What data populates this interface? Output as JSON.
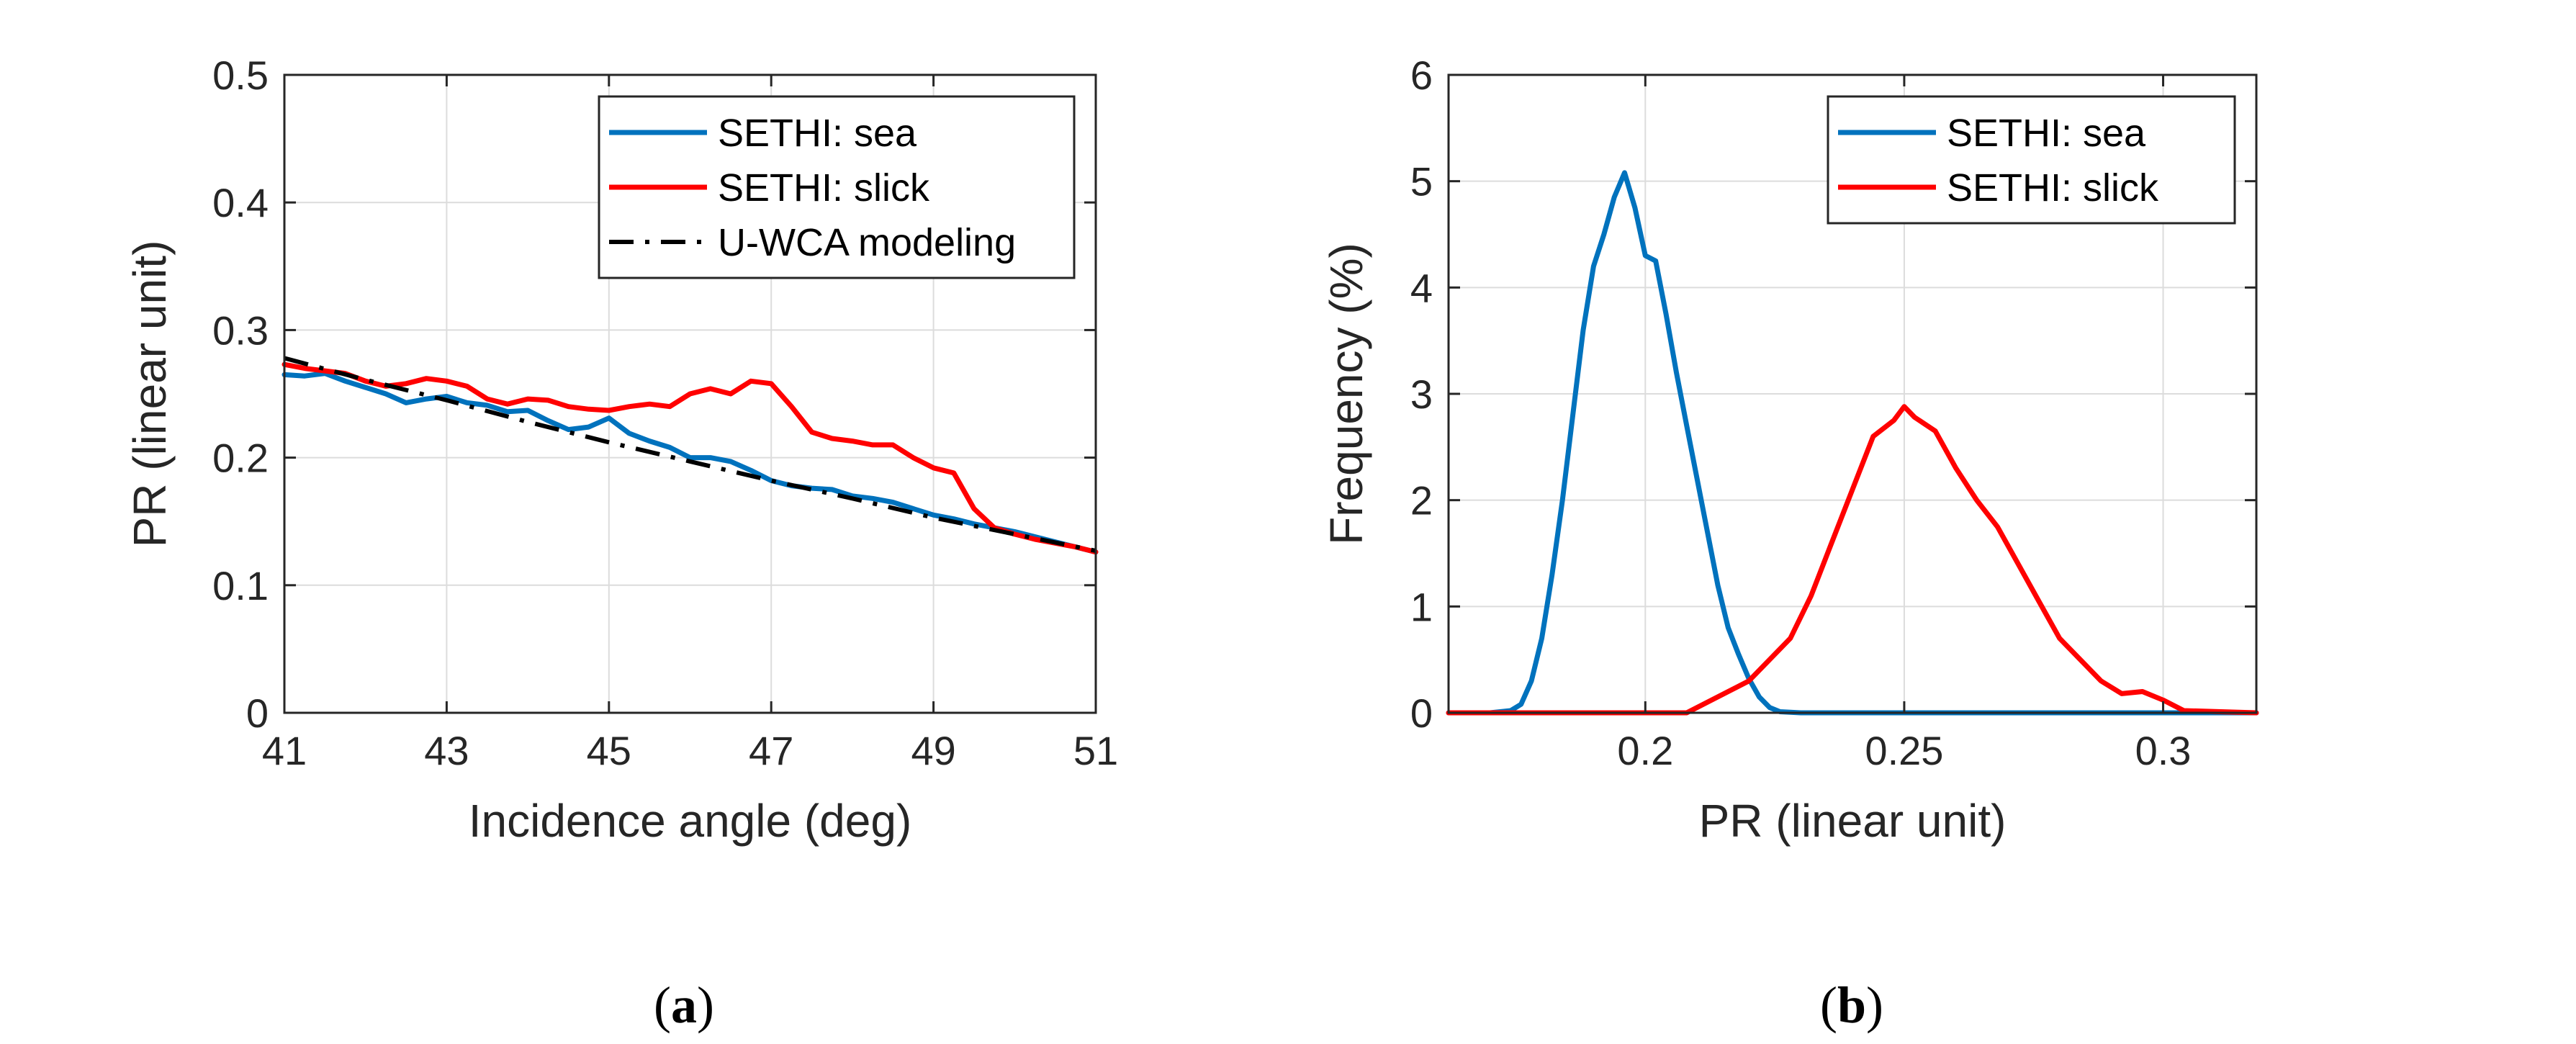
{
  "chart_data": [
    {
      "type": "line",
      "panel": "a",
      "caption": {
        "open": "(",
        "letter": "a",
        "close": ")"
      },
      "xlabel": "Incidence angle (deg)",
      "ylabel": "PR (linear unit)",
      "xlim": [
        41,
        51
      ],
      "ylim": [
        0,
        0.5
      ],
      "xticks": [
        41,
        43,
        45,
        47,
        49,
        51
      ],
      "yticks": [
        0,
        0.1,
        0.2,
        0.3,
        0.4,
        0.5
      ],
      "ytick_labels": [
        "0",
        "0.1",
        "0.2",
        "0.3",
        "0.4",
        "0.5"
      ],
      "grid": true,
      "legend_position": "top-right",
      "series": [
        {
          "name": "SETHI: sea",
          "color": "#0072BD",
          "style": "solid",
          "x": [
            41,
            41.25,
            41.5,
            41.75,
            42,
            42.25,
            42.5,
            42.75,
            43,
            43.25,
            43.5,
            43.75,
            44,
            44.25,
            44.5,
            44.75,
            45,
            45.25,
            45.5,
            45.75,
            46,
            46.25,
            46.5,
            46.75,
            47,
            47.25,
            47.5,
            47.75,
            48,
            48.25,
            48.5,
            48.75,
            49,
            49.25,
            49.5,
            49.75,
            50,
            50.25,
            50.5,
            50.75,
            51
          ],
          "y": [
            0.265,
            0.264,
            0.266,
            0.26,
            0.255,
            0.25,
            0.243,
            0.246,
            0.248,
            0.243,
            0.241,
            0.236,
            0.237,
            0.229,
            0.222,
            0.224,
            0.231,
            0.219,
            0.213,
            0.208,
            0.2,
            0.2,
            0.197,
            0.19,
            0.182,
            0.178,
            0.176,
            0.175,
            0.17,
            0.168,
            0.165,
            0.16,
            0.155,
            0.152,
            0.148,
            0.145,
            0.142,
            0.138,
            0.134,
            0.13,
            0.126
          ]
        },
        {
          "name": "SETHI: slick",
          "color": "#FF0000",
          "style": "solid",
          "x": [
            41,
            41.25,
            41.5,
            41.75,
            42,
            42.25,
            42.5,
            42.75,
            43,
            43.25,
            43.5,
            43.75,
            44,
            44.25,
            44.5,
            44.75,
            45,
            45.25,
            45.5,
            45.75,
            46,
            46.25,
            46.5,
            46.75,
            47,
            47.25,
            47.5,
            47.75,
            48,
            48.25,
            48.5,
            48.75,
            49,
            49.25,
            49.5,
            49.75,
            50,
            50.25,
            50.5,
            50.75,
            51
          ],
          "y": [
            0.273,
            0.27,
            0.268,
            0.266,
            0.26,
            0.256,
            0.258,
            0.262,
            0.26,
            0.256,
            0.246,
            0.242,
            0.246,
            0.245,
            0.24,
            0.238,
            0.237,
            0.24,
            0.242,
            0.24,
            0.25,
            0.254,
            0.25,
            0.26,
            0.258,
            0.24,
            0.22,
            0.215,
            0.213,
            0.21,
            0.21,
            0.2,
            0.192,
            0.188,
            0.16,
            0.145,
            0.14,
            0.136,
            0.133,
            0.13,
            0.126
          ]
        },
        {
          "name": "U-WCA modeling",
          "color": "#000000",
          "style": "dashdot",
          "x": [
            41,
            42,
            43,
            44,
            45,
            46,
            47,
            48,
            49,
            50,
            51
          ],
          "y": [
            0.278,
            0.261,
            0.245,
            0.228,
            0.212,
            0.197,
            0.182,
            0.168,
            0.153,
            0.14,
            0.127
          ]
        }
      ]
    },
    {
      "type": "line",
      "panel": "b",
      "caption": {
        "open": "(",
        "letter": "b",
        "close": ")"
      },
      "xlabel": "PR (linear unit)",
      "ylabel": "Frequency (%)",
      "xlim": [
        0.162,
        0.318
      ],
      "ylim": [
        0,
        6
      ],
      "xticks": [
        0.2,
        0.25,
        0.3
      ],
      "yticks": [
        0,
        1,
        2,
        3,
        4,
        5,
        6
      ],
      "ytick_labels": [
        "0",
        "1",
        "2",
        "3",
        "4",
        "5",
        "6"
      ],
      "grid": true,
      "legend_position": "top-right",
      "series": [
        {
          "name": "SETHI: sea",
          "color": "#0072BD",
          "style": "solid",
          "x": [
            0.162,
            0.17,
            0.174,
            0.176,
            0.178,
            0.18,
            0.182,
            0.184,
            0.186,
            0.188,
            0.19,
            0.192,
            0.194,
            0.196,
            0.198,
            0.2,
            0.202,
            0.204,
            0.206,
            0.208,
            0.21,
            0.212,
            0.214,
            0.216,
            0.218,
            0.22,
            0.222,
            0.224,
            0.226,
            0.23,
            0.318
          ],
          "y": [
            0,
            0,
            0.02,
            0.08,
            0.3,
            0.7,
            1.3,
            2.0,
            2.8,
            3.6,
            4.2,
            4.5,
            4.85,
            5.08,
            4.75,
            4.3,
            4.25,
            3.75,
            3.2,
            2.7,
            2.2,
            1.7,
            1.2,
            0.8,
            0.55,
            0.32,
            0.15,
            0.05,
            0.01,
            0,
            0
          ]
        },
        {
          "name": "SETHI: slick",
          "color": "#FF0000",
          "style": "solid",
          "x": [
            0.162,
            0.208,
            0.212,
            0.216,
            0.22,
            0.224,
            0.228,
            0.232,
            0.236,
            0.24,
            0.244,
            0.248,
            0.25,
            0.252,
            0.256,
            0.26,
            0.264,
            0.268,
            0.272,
            0.276,
            0.28,
            0.284,
            0.288,
            0.292,
            0.296,
            0.3,
            0.304,
            0.318
          ],
          "y": [
            0,
            0,
            0.1,
            0.2,
            0.3,
            0.5,
            0.7,
            1.1,
            1.6,
            2.1,
            2.6,
            2.75,
            2.88,
            2.78,
            2.65,
            2.3,
            2.0,
            1.75,
            1.4,
            1.05,
            0.7,
            0.5,
            0.3,
            0.18,
            0.2,
            0.12,
            0.02,
            0
          ]
        }
      ]
    }
  ]
}
